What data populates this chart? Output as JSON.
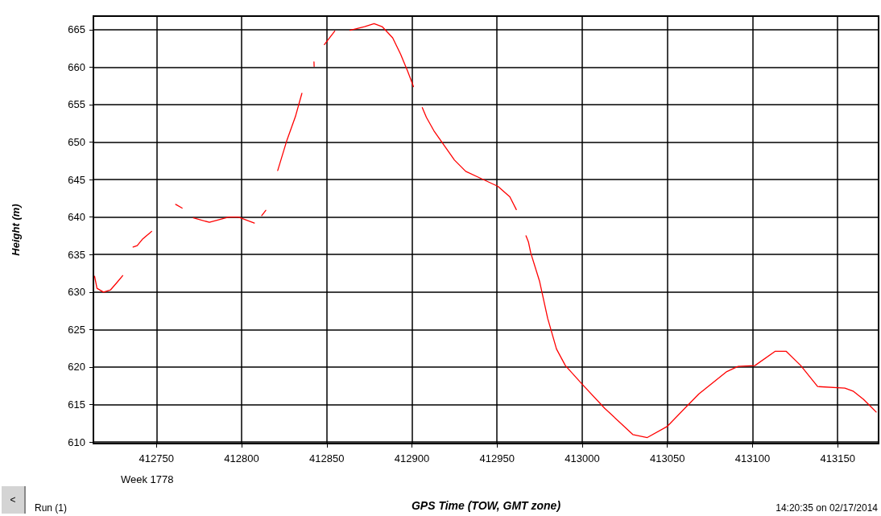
{
  "chart_data": {
    "type": "line",
    "xlabel": "GPS Time (TOW, GMT zone)",
    "ylabel": "Height (m)",
    "annotations": [
      "Week 1778",
      "<",
      "Run (1)",
      "14:20:35 on 02/17/2014"
    ],
    "xlim": [
      412713,
      413174
    ],
    "xticks": [
      412750,
      412800,
      412850,
      412900,
      412950,
      413000,
      413050,
      413100,
      413150
    ],
    "ylim": [
      609.8,
      666.8
    ],
    "yticks": [
      610,
      615,
      620,
      625,
      630,
      635,
      640,
      645,
      650,
      655,
      660,
      665
    ],
    "grid": true,
    "marker": "none",
    "line_style": "solid",
    "series": [
      {
        "color": "#ff0000",
        "x": [
          412713.7,
          412715.1,
          412718.9,
          412723.1,
          412726.9,
          412730.2
        ],
        "values": [
          632.1,
          630.5,
          630.0,
          630.3,
          631.3,
          632.2
        ]
      },
      {
        "color": "#ff0000",
        "x": [
          412736.3,
          412738.7,
          412742.0,
          412746.2,
          412747.2
        ],
        "values": [
          636.0,
          636.2,
          637.1,
          637.9,
          638.1
        ]
      },
      {
        "color": "#ff0000",
        "x": [
          412761.3,
          412765.1
        ],
        "values": [
          641.7,
          641.2
        ]
      },
      {
        "color": "#ff0000",
        "x": [
          412771.7,
          412781.1,
          412792.5,
          412798.1,
          412807.5
        ],
        "values": [
          639.9,
          639.3,
          640.0,
          640.0,
          639.2
        ]
      },
      {
        "color": "#ff0000",
        "x": [
          412811.8,
          412814.2
        ],
        "values": [
          640.2,
          640.9
        ]
      },
      {
        "color": "#ff0000",
        "x": [
          412821.2,
          412826.4,
          412831.6,
          412835.4
        ],
        "values": [
          646.2,
          650.1,
          653.4,
          656.5
        ]
      },
      {
        "color": "#ff0000",
        "x": [
          412842.5,
          412842.6
        ],
        "values": [
          660.7,
          660.1
        ]
      },
      {
        "color": "#ff0000",
        "x": [
          412848.6,
          412854.7
        ],
        "values": [
          663.0,
          664.8
        ]
      },
      {
        "color": "#ff0000",
        "x": [
          412863.7,
          412872.2,
          412877.8,
          412882.5,
          412888.7,
          412893.4,
          412897.6,
          412900.9
        ],
        "values": [
          664.9,
          665.4,
          665.8,
          665.4,
          663.9,
          661.7,
          659.4,
          657.4
        ]
      },
      {
        "color": "#ff0000",
        "x": [
          412906.1,
          412908.5,
          412913.2,
          412925.0,
          412931.6,
          412940.1,
          412950.5,
          412957.5,
          412961.3
        ],
        "values": [
          654.6,
          653.3,
          651.4,
          647.6,
          646.1,
          645.2,
          644.1,
          642.7,
          641.0
        ]
      },
      {
        "color": "#ff0000",
        "x": [
          412967.0,
          412968.4,
          412969.8,
          412975.0,
          412979.7,
          412984.9,
          412990.1,
          413000.0,
          413013.2,
          413029.7,
          413038.2,
          413050.0,
          413063.2,
          413068.4,
          413084.9,
          413091.5,
          413101.4,
          413113.2,
          413119.8,
          413128.3,
          413138.2,
          413154.2,
          413159.0,
          413165.1,
          413172.6
        ],
        "values": [
          637.5,
          636.7,
          635.2,
          631.4,
          626.5,
          622.4,
          620.2,
          617.7,
          614.5,
          611.0,
          610.6,
          612.1,
          615.2,
          616.4,
          619.4,
          620.1,
          620.2,
          622.1,
          622.1,
          620.2,
          617.4,
          617.2,
          616.8,
          615.7,
          614.0
        ]
      }
    ]
  }
}
